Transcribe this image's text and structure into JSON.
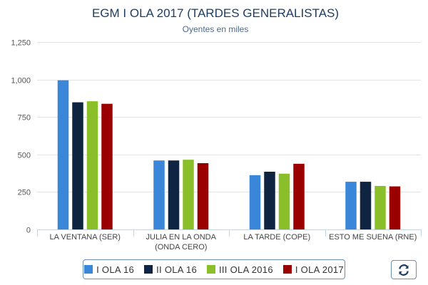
{
  "chart_data": {
    "type": "bar",
    "title": "EGM I OLA 2017 (TARDES GENERALISTAS)",
    "subtitle": "Oyentes en miles",
    "xlabel": "",
    "ylabel": "",
    "ylim": [
      0,
      1250
    ],
    "yticks": [
      "0",
      "250",
      "500",
      "750",
      "1,000",
      "1,250"
    ],
    "ytick_values": [
      0,
      250,
      500,
      750,
      1000,
      1250
    ],
    "grid": true,
    "legend_position": "bottom",
    "categories": [
      [
        "LA VENTANA (SER)"
      ],
      [
        "JULIA EN LA ONDA",
        "(ONDA CERO)"
      ],
      [
        "LA TARDE (COPE)"
      ],
      [
        "ESTO ME SUENA (RNE)"
      ]
    ],
    "series": [
      {
        "name": "I OLA 16",
        "color": "#3a86d9",
        "values": [
          995,
          460,
          362,
          318
        ]
      },
      {
        "name": "II OLA 16",
        "color": "#0f2440",
        "values": [
          848,
          460,
          385,
          318
        ]
      },
      {
        "name": "III OLA 2016",
        "color": "#8bbf2a",
        "values": [
          855,
          465,
          372,
          290
        ]
      },
      {
        "name": "I OLA 2017",
        "color": "#9b0000",
        "values": [
          838,
          442,
          438,
          287
        ]
      }
    ]
  },
  "legend": {
    "items": [
      {
        "label": "I OLA 16",
        "color": "#3a86d9"
      },
      {
        "label": "II OLA 16",
        "color": "#0f2440"
      },
      {
        "label": "III OLA 2016",
        "color": "#8bbf2a"
      },
      {
        "label": "I OLA 2017",
        "color": "#9b0000"
      }
    ]
  },
  "toolbar": {
    "refresh_icon": "refresh-icon"
  }
}
